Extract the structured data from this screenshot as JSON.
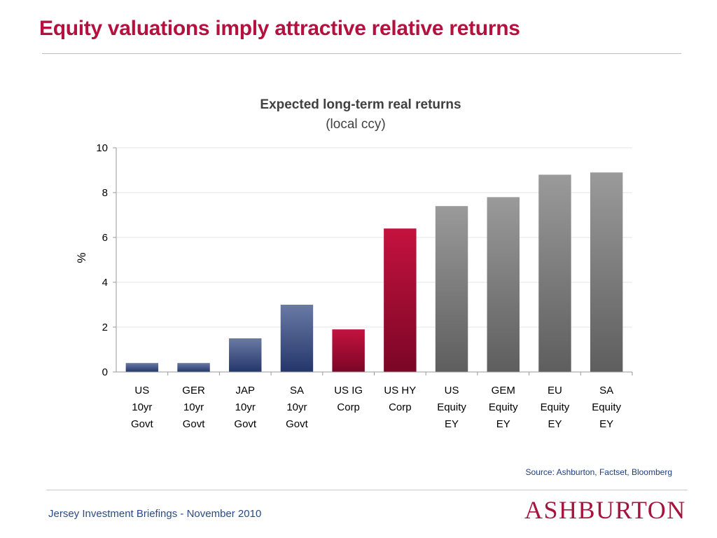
{
  "slide": {
    "title": "Equity valuations imply attractive relative returns",
    "source": "Source: Ashburton, Factset, Bloomberg",
    "footer": "Jersey Investment Briefings - November 2010",
    "logo_text": "ASHBURTON"
  },
  "colors": {
    "accent": "#b5113f",
    "govt_top": "#6a7aa5",
    "govt_bottom": "#24366a",
    "corp_top": "#c4123e",
    "corp_bottom": "#7a0626",
    "equity_top": "#9a9a9a",
    "equity_bottom": "#5e5e5e"
  },
  "chart_data": {
    "type": "bar",
    "title": "Expected long-term real returns",
    "subtitle": "(local ccy)",
    "xlabel": "",
    "ylabel": "%",
    "ylim": [
      0,
      10
    ],
    "yticks": [
      0,
      2,
      4,
      6,
      8,
      10
    ],
    "grid": true,
    "categories": [
      [
        "US",
        "10yr",
        "Govt"
      ],
      [
        "GER",
        "10yr",
        "Govt"
      ],
      [
        "JAP",
        "10yr",
        "Govt"
      ],
      [
        "SA",
        "10yr",
        "Govt"
      ],
      [
        "US IG",
        "Corp"
      ],
      [
        "US HY",
        "Corp"
      ],
      [
        "US",
        "Equity",
        "EY"
      ],
      [
        "GEM",
        "Equity",
        "EY"
      ],
      [
        "EU",
        "Equity",
        "EY"
      ],
      [
        "SA",
        "Equity",
        "EY"
      ]
    ],
    "groups": [
      "govt",
      "govt",
      "govt",
      "govt",
      "corp",
      "corp",
      "equity",
      "equity",
      "equity",
      "equity"
    ],
    "values": [
      0.4,
      0.4,
      1.5,
      3.0,
      1.9,
      6.4,
      7.4,
      7.8,
      8.8,
      8.9
    ]
  }
}
